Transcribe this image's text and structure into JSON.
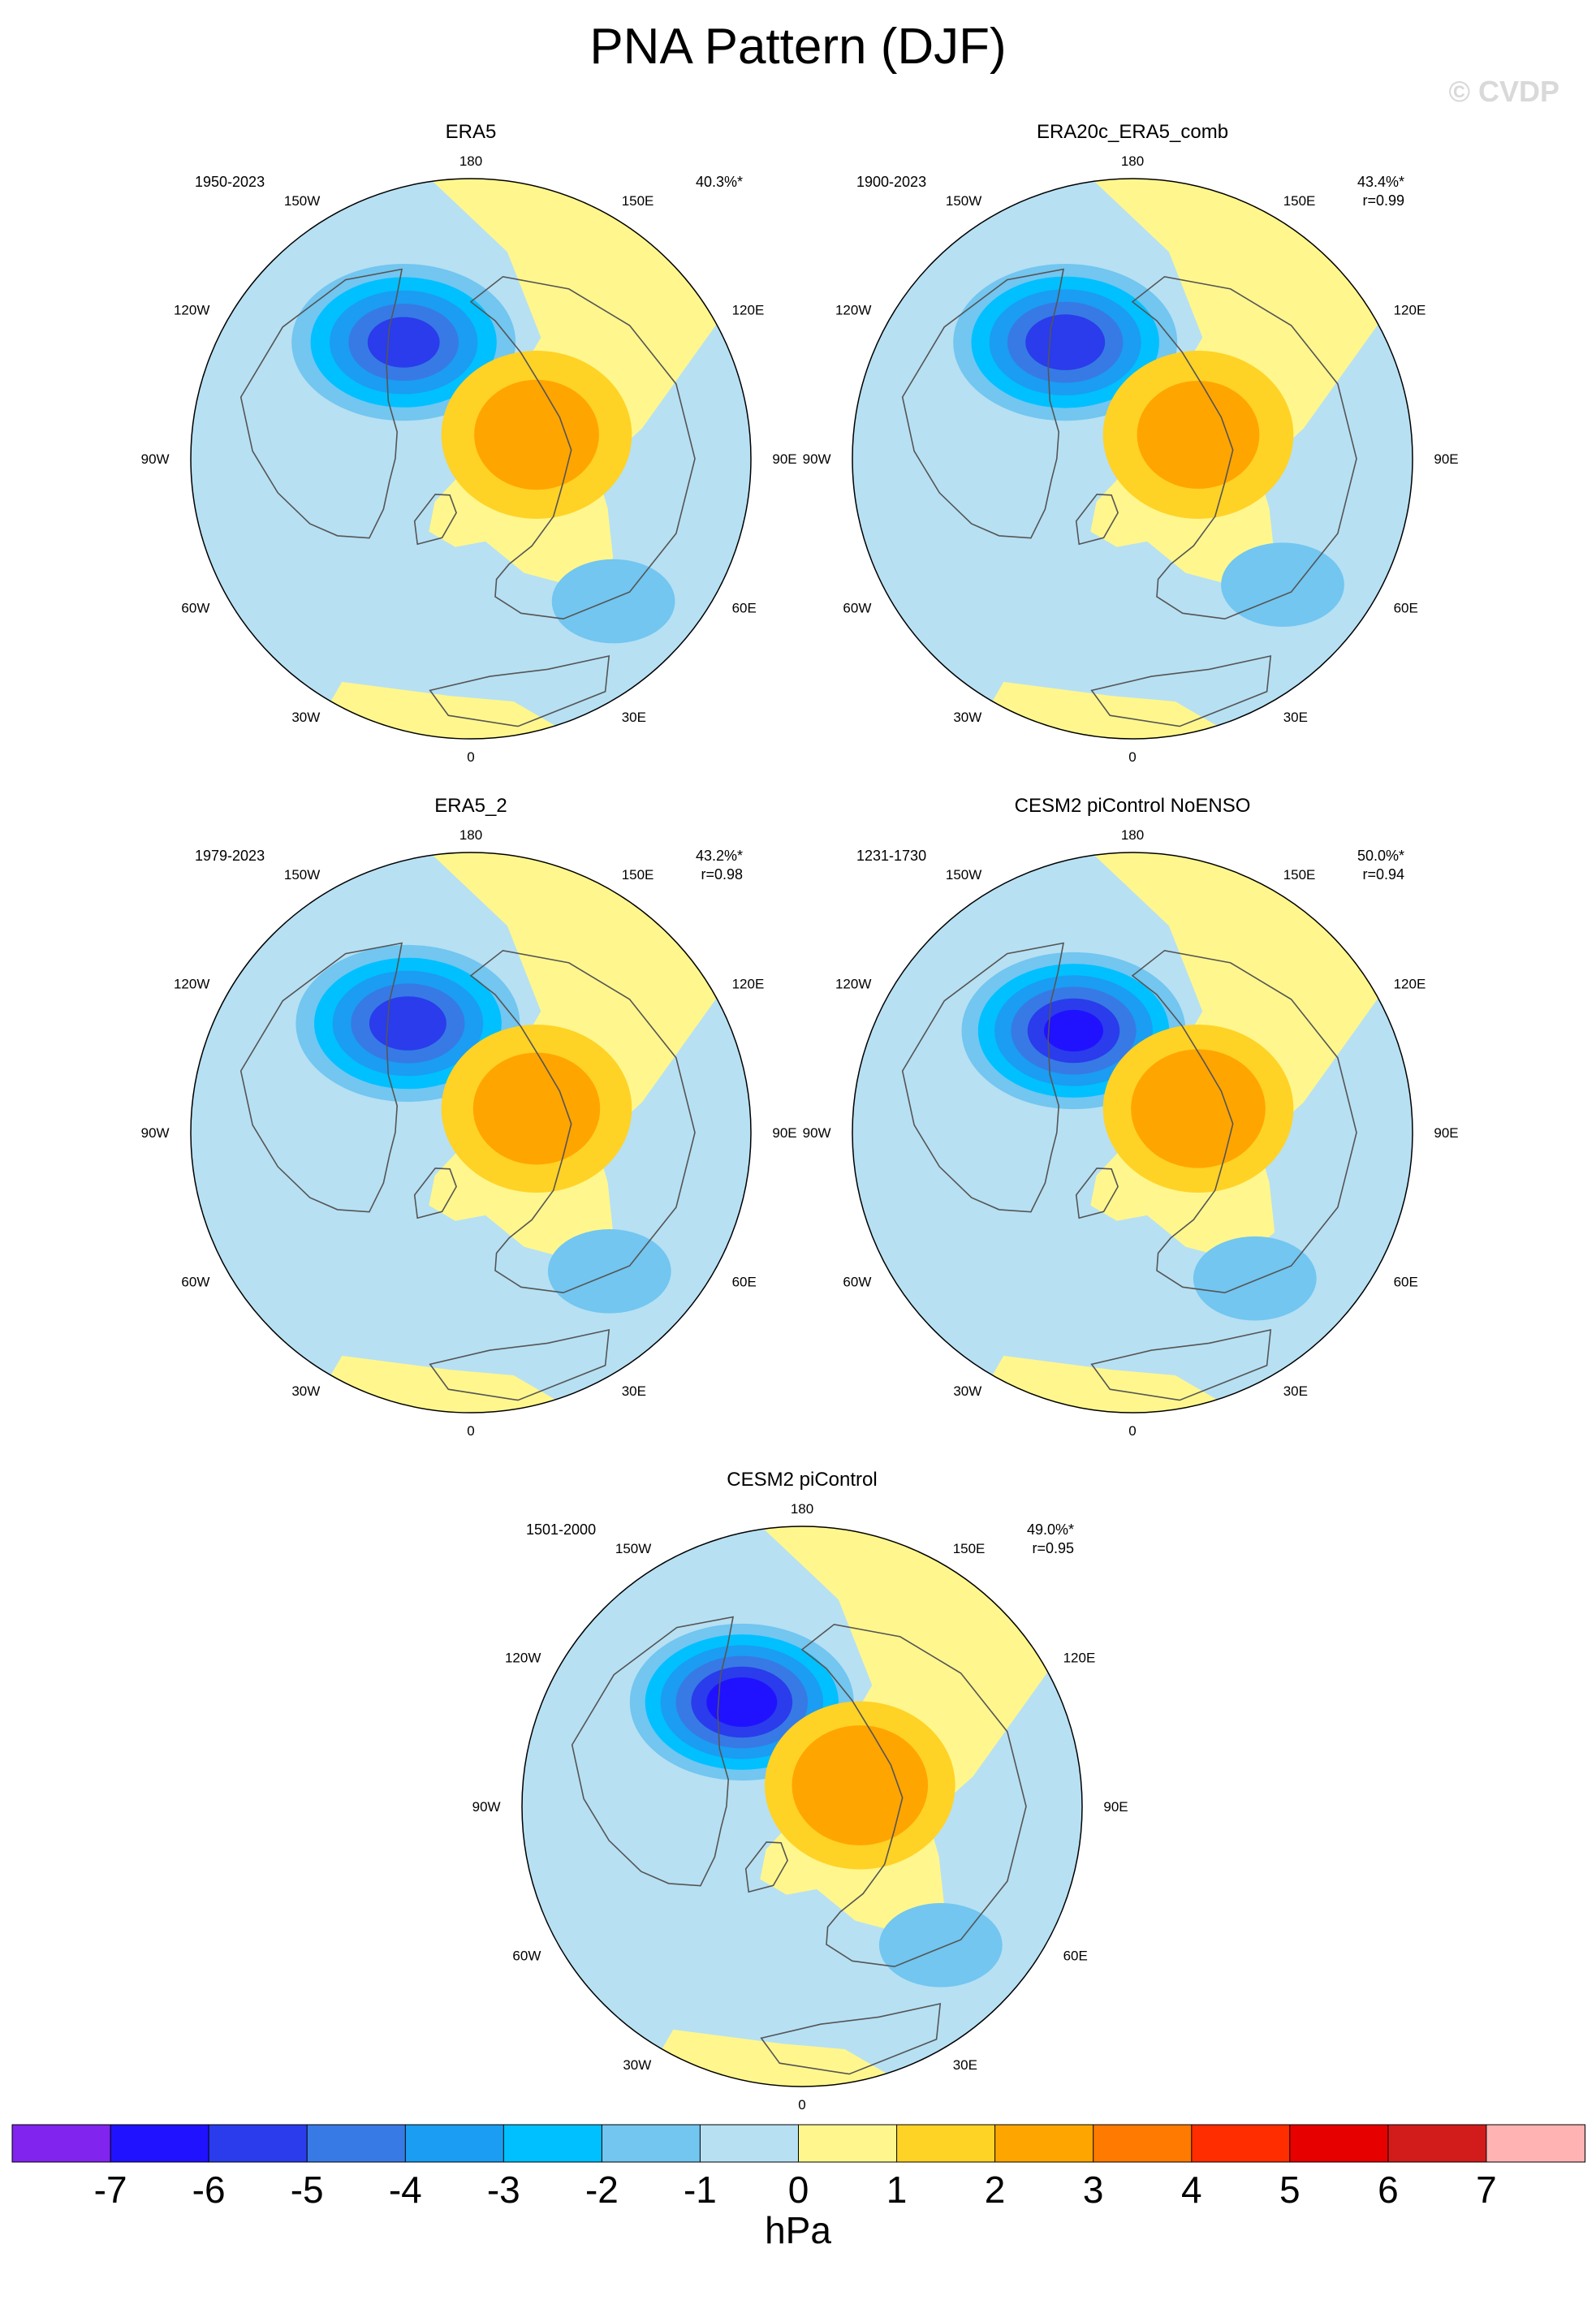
{
  "figure": {
    "title": "PNA Pattern (DJF)",
    "watermark": "© CVDP"
  },
  "colors": {
    "levels": [
      "#8124ee",
      "#2012ff",
      "#2a3ceb",
      "#377ae5",
      "#1a9df2",
      "#00c0ff",
      "#72c6f0",
      "#b7e0f3",
      "#fff78d",
      "#ffd226",
      "#ffa500",
      "#ff7a00",
      "#ff2d00",
      "#e60000",
      "#d21c1c",
      "#ffb3b3"
    ],
    "land_outline": "#555555",
    "map_border": "#000000"
  },
  "chart_data": [
    {
      "type": "contour-map",
      "variable": "PSL",
      "title": "ERA5",
      "period": "1950-2023",
      "percent_variance": "40.3%*",
      "pattern_correlation": "",
      "lon_labels": [
        "180",
        "150E",
        "120E",
        "90E",
        "60E",
        "30E",
        "0",
        "30W",
        "60W",
        "90W",
        "120W",
        "150W"
      ],
      "centers": [
        {
          "name": "aleutian-low",
          "lon": 210,
          "lat_dist": 0.48,
          "value": -5.3
        },
        {
          "name": "canada-high",
          "lon": 110,
          "lat_dist": 0.25,
          "value": 2.3
        },
        {
          "name": "south-low",
          "lon": 45,
          "lat_dist": 0.72,
          "value": -1.0
        }
      ]
    },
    {
      "type": "contour-map",
      "variable": "PSL",
      "title": "ERA20c_ERA5_comb",
      "period": "1900-2023",
      "percent_variance": "43.4%*",
      "pattern_correlation": "r=0.99",
      "lon_labels": [
        "180",
        "150E",
        "120E",
        "90E",
        "60E",
        "30E",
        "0",
        "30W",
        "60W",
        "90W",
        "120W",
        "150W"
      ],
      "centers": [
        {
          "name": "aleutian-low",
          "lon": 210,
          "lat_dist": 0.48,
          "value": -5.6
        },
        {
          "name": "canada-high",
          "lon": 110,
          "lat_dist": 0.25,
          "value": 2.2
        },
        {
          "name": "south-low",
          "lon": 50,
          "lat_dist": 0.7,
          "value": -1.3
        }
      ]
    },
    {
      "type": "contour-map",
      "variable": "PSL",
      "title": "ERA5_2",
      "period": "1979-2023",
      "percent_variance": "43.2%*",
      "pattern_correlation": "r=0.98",
      "lon_labels": [
        "180",
        "150E",
        "120E",
        "90E",
        "60E",
        "30E",
        "0",
        "30W",
        "60W",
        "90W",
        "120W",
        "150W"
      ],
      "centers": [
        {
          "name": "aleutian-low",
          "lon": 210,
          "lat_dist": 0.45,
          "value": -5.5
        },
        {
          "name": "canada-high",
          "lon": 110,
          "lat_dist": 0.25,
          "value": 2.4
        },
        {
          "name": "south-low",
          "lon": 45,
          "lat_dist": 0.7,
          "value": -1.0
        }
      ]
    },
    {
      "type": "contour-map",
      "variable": "PSL",
      "title": "CESM2 piControl NoENSO",
      "period": "1231-1730",
      "percent_variance": "50.0%*",
      "pattern_correlation": "r=0.94",
      "lon_labels": [
        "180",
        "150E",
        "120E",
        "90E",
        "60E",
        "30E",
        "0",
        "30W",
        "60W",
        "90W",
        "120W",
        "150W"
      ],
      "centers": [
        {
          "name": "aleutian-low",
          "lon": 210,
          "lat_dist": 0.42,
          "value": -6.2
        },
        {
          "name": "canada-high",
          "lon": 110,
          "lat_dist": 0.25,
          "value": 2.8
        },
        {
          "name": "south-low",
          "lon": 40,
          "lat_dist": 0.68,
          "value": -1.5
        }
      ]
    },
    {
      "type": "contour-map",
      "variable": "PSL",
      "title": "CESM2 piControl",
      "period": "1501-2000",
      "percent_variance": "49.0%*",
      "pattern_correlation": "r=0.95",
      "lon_labels": [
        "180",
        "150E",
        "120E",
        "90E",
        "60E",
        "30E",
        "0",
        "30W",
        "60W",
        "90W",
        "120W",
        "150W"
      ],
      "centers": [
        {
          "name": "aleutian-low",
          "lon": 210,
          "lat_dist": 0.43,
          "value": -6.7
        },
        {
          "name": "canada-high",
          "lon": 110,
          "lat_dist": 0.22,
          "value": 2.9
        },
        {
          "name": "south-low",
          "lon": 45,
          "lat_dist": 0.7,
          "value": -1.8
        }
      ]
    }
  ],
  "colorbar": {
    "labels": [
      "-7",
      "-6",
      "-5",
      "-4",
      "-3",
      "-2",
      "-1",
      "0",
      "1",
      "2",
      "3",
      "4",
      "5",
      "6",
      "7"
    ],
    "units": "hPa"
  }
}
